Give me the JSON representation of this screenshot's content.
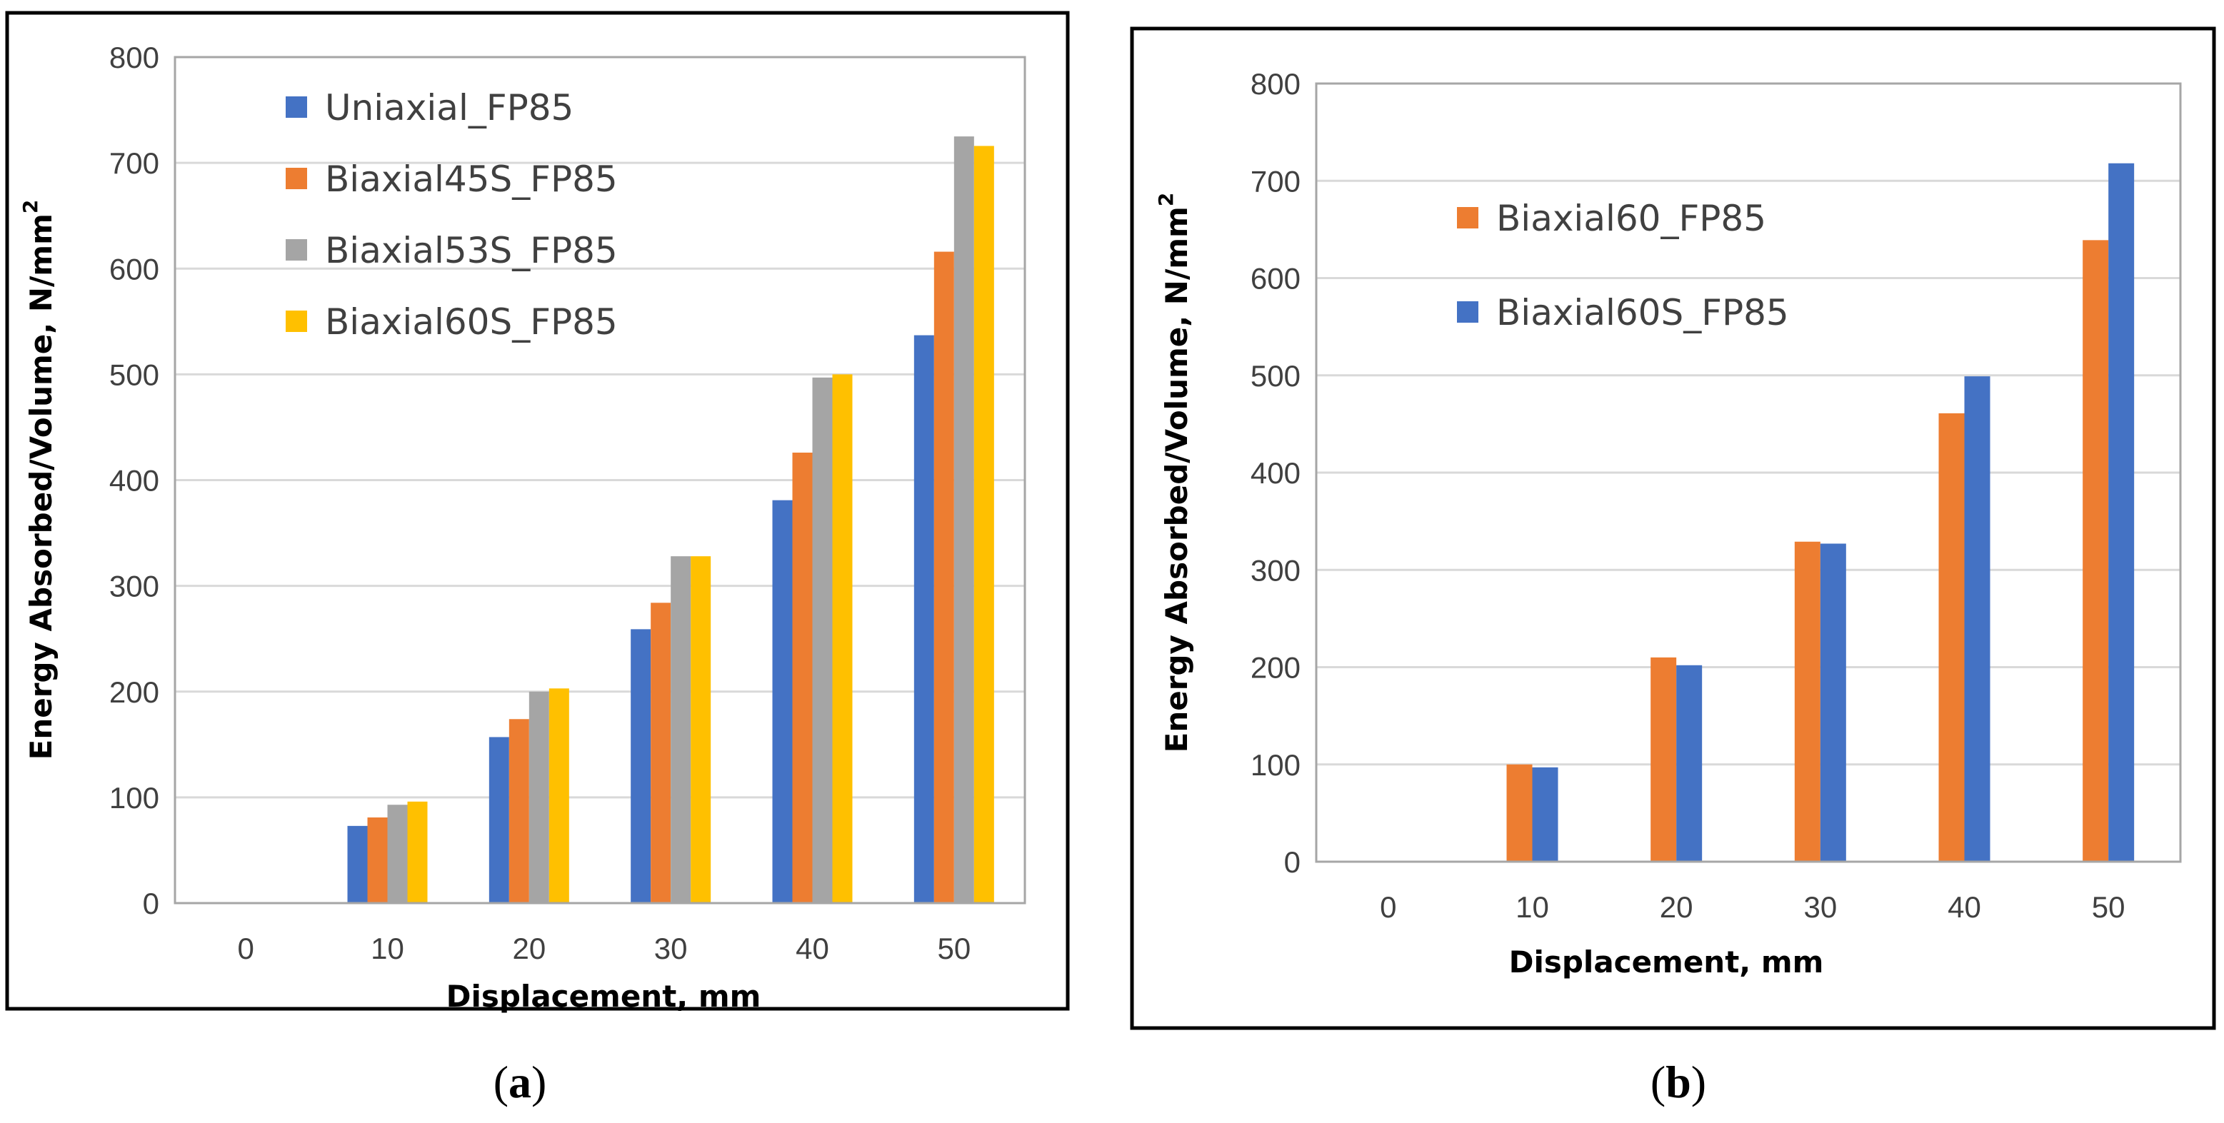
{
  "chart_data": [
    {
      "type": "bar",
      "caption_open": "(",
      "caption": "a",
      "caption_close": ")",
      "xlabel": "Displacement, mm",
      "ylabel": "Energy Absorbed/Volume, N/mm",
      "ylabel_sup": "2",
      "categories": [
        "0",
        "10",
        "20",
        "30",
        "40",
        "50"
      ],
      "ylim": [
        0,
        800
      ],
      "yticks": [
        "0",
        "100",
        "200",
        "300",
        "400",
        "500",
        "600",
        "700",
        "800"
      ],
      "grid": true,
      "legend_position": "top-left",
      "series": [
        {
          "name": "Uniaxial_FP85",
          "color": "#4472C4",
          "values": [
            0,
            73,
            157,
            259,
            381,
            537
          ]
        },
        {
          "name": "Biaxial45S_FP85",
          "color": "#ED7D31",
          "values": [
            0,
            81,
            174,
            284,
            426,
            616
          ]
        },
        {
          "name": "Biaxial53S_FP85",
          "color": "#A5A5A5",
          "values": [
            0,
            93,
            200,
            328,
            497,
            725
          ]
        },
        {
          "name": "Biaxial60S_FP85",
          "color": "#FFC000",
          "values": [
            0,
            96,
            203,
            328,
            500,
            716
          ]
        }
      ]
    },
    {
      "type": "bar",
      "caption_open": "(",
      "caption": "b",
      "caption_close": ")",
      "xlabel": "Displacement, mm",
      "ylabel": "Energy Absorbed/Volume, N/mm",
      "ylabel_sup": "2",
      "categories": [
        "0",
        "10",
        "20",
        "30",
        "40",
        "50"
      ],
      "ylim": [
        0,
        800
      ],
      "yticks": [
        "0",
        "100",
        "200",
        "300",
        "400",
        "500",
        "600",
        "700",
        "800"
      ],
      "grid": true,
      "legend_position": "top-left",
      "series": [
        {
          "name": "Biaxial60_FP85",
          "color": "#ED7D31",
          "values": [
            0,
            100,
            210,
            329,
            461,
            639
          ]
        },
        {
          "name": "Biaxial60S_FP85",
          "color": "#4472C4",
          "values": [
            0,
            97,
            202,
            327,
            499,
            718
          ]
        }
      ]
    }
  ]
}
